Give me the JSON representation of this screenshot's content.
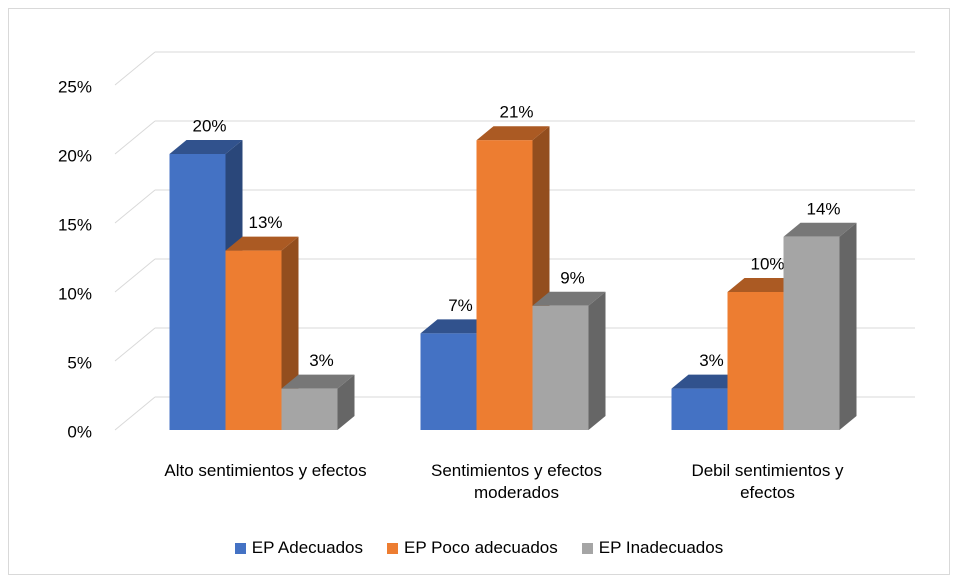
{
  "chart_data": {
    "type": "bar3d",
    "categories": [
      "Alto sentimientos y efectos",
      "Sentimientos y efectos moderados",
      "Debil sentimientos y efectos"
    ],
    "series": [
      {
        "name": "EP Adecuados",
        "color": "#4472c4",
        "values": [
          20,
          7,
          3
        ],
        "value_labels": [
          "20%",
          "7%",
          "3%"
        ]
      },
      {
        "name": "EP Poco adecuados",
        "color": "#ed7d31",
        "values": [
          13,
          21,
          10
        ],
        "value_labels": [
          "13%",
          "21%",
          "10%"
        ]
      },
      {
        "name": "EP Inadecuados",
        "color": "#a5a5a5",
        "values": [
          3,
          9,
          14
        ],
        "value_labels": [
          "3%",
          "9%",
          "14%"
        ]
      }
    ],
    "ylim": [
      0,
      25
    ],
    "yticks": [
      {
        "value": 0,
        "label": "0%"
      },
      {
        "value": 5,
        "label": "5%"
      },
      {
        "value": 10,
        "label": "10%"
      },
      {
        "value": 15,
        "label": "15%"
      },
      {
        "value": 20,
        "label": "20%"
      },
      {
        "value": 25,
        "label": "25%"
      }
    ],
    "grid": true,
    "legend": "bottom"
  }
}
